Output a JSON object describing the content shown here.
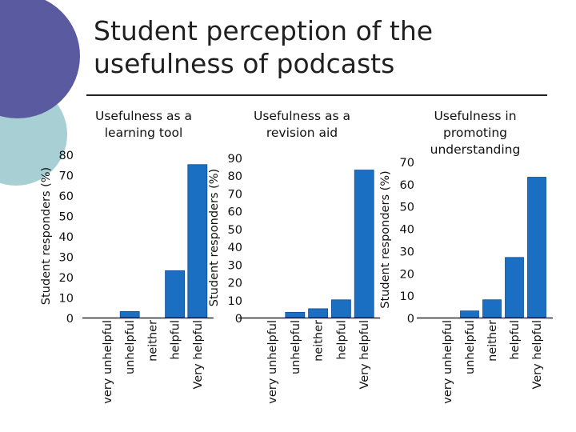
{
  "title": "Student perception of the usefulness of podcasts",
  "colors": {
    "bar": "#1b6fc2",
    "bar_edge": "#0f4e96",
    "deco_dark": "#5a5aa0",
    "deco_light": "#a8cfd4",
    "rule": "#222222"
  },
  "chart_data": [
    {
      "type": "bar",
      "title": "Usefulness as a learning tool",
      "xlabel": "",
      "ylabel": "Student responders (%)",
      "categories": [
        "very unhelpful",
        "unhelpful",
        "neither",
        "helpful",
        "Very helpful"
      ],
      "values": [
        0,
        3,
        0,
        23,
        75
      ],
      "ylim": [
        0,
        80
      ],
      "yticks": [
        0,
        10,
        20,
        30,
        40,
        50,
        60,
        70,
        80
      ]
    },
    {
      "type": "bar",
      "title": "Usefulness as a revision aid",
      "xlabel": "",
      "ylabel": "Student responders (%)",
      "categories": [
        "very unhelpful",
        "unhelpful",
        "neither",
        "helpful",
        "Very helpful"
      ],
      "values": [
        0,
        3,
        5,
        10,
        83
      ],
      "ylim": [
        0,
        90
      ],
      "yticks": [
        0,
        10,
        20,
        30,
        40,
        50,
        60,
        70,
        80,
        90
      ]
    },
    {
      "type": "bar",
      "title": "Usefulness in promoting understanding",
      "xlabel": "",
      "ylabel": "Student responders (%)",
      "categories": [
        "very unhelpful",
        "unhelpful",
        "neither",
        "helpful",
        "Very helpful"
      ],
      "values": [
        0,
        3,
        8,
        27,
        63
      ],
      "ylim": [
        0,
        70
      ],
      "yticks": [
        0,
        10,
        20,
        30,
        40,
        50,
        60,
        70
      ]
    }
  ]
}
